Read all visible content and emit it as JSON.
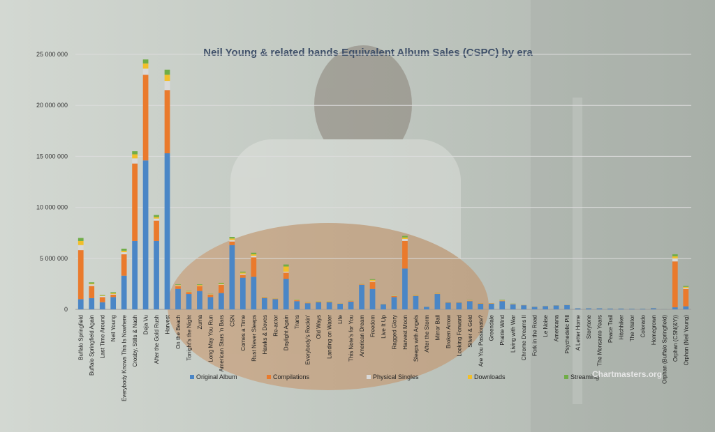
{
  "chart_data": {
    "type": "bar",
    "stacked": true,
    "title": "Neil Young & related bands  Equivalent Album Sales (CSPC) by era",
    "ylim": [
      0,
      25000000
    ],
    "yticks": [
      "0",
      "5 000 000",
      "10 000 000",
      "15 000 000",
      "20 000 000",
      "25 000 000"
    ],
    "ytick_values": [
      0,
      5000000,
      10000000,
      15000000,
      20000000,
      25000000
    ],
    "grid": true,
    "legend_position": "bottom",
    "categories": [
      "Buffalo Springfield",
      "Buffalo Springfield Again",
      "Last Time Around",
      "Neil Young",
      "Everybody Knows This Is Nowhere",
      "Crosby, Stills & Nash",
      "Deja Vu",
      "After the Gold Rush",
      "Harvest",
      "On the Beach",
      "Tonight's the Night",
      "Zuma",
      "Long May You Run",
      "American Stars 'n Bars",
      "CSN",
      "Comes a Time",
      "Rust Never Sleeps",
      "Hawks & Doves",
      "Re-actor",
      "Daylight Again",
      "Trans",
      "Everybody's Rockin'",
      "Old Ways",
      "Landing on Water",
      "Life",
      "This Note's for You",
      "American Dream",
      "Freedom",
      "Live It Up",
      "Ragged Glory",
      "Harvest Moon",
      "Sleeps with Angels",
      "After the Storm",
      "Mirror Ball",
      "Broken Arrow",
      "Looking Forward",
      "Silver & Gold",
      "Are You Passionate?",
      "Greendale",
      "Prairie Wind",
      "Living with War",
      "Chrome Dreams II",
      "Fork in the Road",
      "Le Noise",
      "Americana",
      "Psychedelic Pill",
      "A Letter Home",
      "Storytone",
      "The Monsanto Years",
      "Peace Trail",
      "Hitchhiker",
      "The Visitor",
      "Colorado",
      "Homegrown",
      "Orphan (Buffalo Springfield)",
      "Orphan (CSN(&Y))",
      "Orphan (Neil Young)"
    ],
    "series": [
      {
        "name": "Original Album",
        "color": "#4a86c6",
        "values": [
          1000000,
          1100000,
          700000,
          1200000,
          3300000,
          6700000,
          14600000,
          6700000,
          15300000,
          2000000,
          1500000,
          1800000,
          1200000,
          1600000,
          6300000,
          3100000,
          3200000,
          1100000,
          1000000,
          3000000,
          800000,
          600000,
          700000,
          700000,
          550000,
          750000,
          2400000,
          2000000,
          500000,
          1200000,
          4000000,
          1300000,
          250000,
          1500000,
          650000,
          650000,
          800000,
          550000,
          550000,
          800000,
          500000,
          400000,
          250000,
          320000,
          380000,
          420000,
          100000,
          100000,
          100000,
          80000,
          80000,
          60000,
          60000,
          120000,
          20000,
          200000,
          300000
        ]
      },
      {
        "name": "Compilations",
        "color": "#ea7a2c",
        "values": [
          4800000,
          1200000,
          500000,
          250000,
          2100000,
          7600000,
          8400000,
          2000000,
          6200000,
          300000,
          200000,
          500000,
          250000,
          800000,
          350000,
          300000,
          1900000,
          60000,
          50000,
          600000,
          100000,
          50000,
          50000,
          50000,
          20000,
          60000,
          50000,
          700000,
          20000,
          100000,
          2700000,
          50000,
          10000,
          50000,
          30000,
          30000,
          50000,
          30000,
          30000,
          50000,
          30000,
          20000,
          15000,
          15000,
          15000,
          15000,
          5000,
          5000,
          5000,
          5000,
          5000,
          5000,
          5000,
          10000,
          5000,
          4500000,
          1700000
        ]
      },
      {
        "name": "Physical Singles",
        "color": "#d9d9d9",
        "values": [
          500000,
          150000,
          100000,
          50000,
          200000,
          500000,
          600000,
          200000,
          900000,
          50000,
          30000,
          30000,
          20000,
          50000,
          150000,
          100000,
          150000,
          20000,
          15000,
          100000,
          30000,
          20000,
          20000,
          20000,
          10000,
          20000,
          20000,
          80000,
          10000,
          30000,
          200000,
          20000,
          5000,
          20000,
          10000,
          10000,
          20000,
          10000,
          10000,
          20000,
          10000,
          5000,
          5000,
          5000,
          5000,
          5000,
          2000,
          2000,
          2000,
          2000,
          2000,
          2000,
          2000,
          3000,
          2000,
          300000,
          100000
        ]
      },
      {
        "name": "Downloads",
        "color": "#f2bf2a",
        "values": [
          400000,
          80000,
          50000,
          80000,
          150000,
          400000,
          500000,
          150000,
          600000,
          40000,
          30000,
          60000,
          20000,
          60000,
          150000,
          100000,
          150000,
          15000,
          10000,
          500000,
          20000,
          15000,
          15000,
          15000,
          10000,
          15000,
          15000,
          100000,
          5000,
          20000,
          150000,
          20000,
          3000,
          30000,
          10000,
          10000,
          20000,
          10000,
          10000,
          30000,
          10000,
          5000,
          5000,
          5000,
          5000,
          5000,
          2000,
          2000,
          2000,
          2000,
          2000,
          2000,
          2000,
          3000,
          2000,
          200000,
          100000
        ]
      },
      {
        "name": "Streaming",
        "color": "#70ad47",
        "values": [
          300000,
          120000,
          60000,
          100000,
          200000,
          300000,
          400000,
          200000,
          500000,
          60000,
          40000,
          60000,
          30000,
          90000,
          150000,
          100000,
          150000,
          20000,
          15000,
          200000,
          30000,
          20000,
          20000,
          20000,
          10000,
          20000,
          20000,
          80000,
          10000,
          30000,
          150000,
          30000,
          5000,
          30000,
          15000,
          15000,
          20000,
          10000,
          10000,
          40000,
          15000,
          10000,
          5000,
          5000,
          5000,
          5000,
          2000,
          2000,
          2000,
          2000,
          2000,
          2000,
          2000,
          3000,
          2000,
          200000,
          100000
        ]
      }
    ]
  },
  "watermark": "Chartmasters.org"
}
